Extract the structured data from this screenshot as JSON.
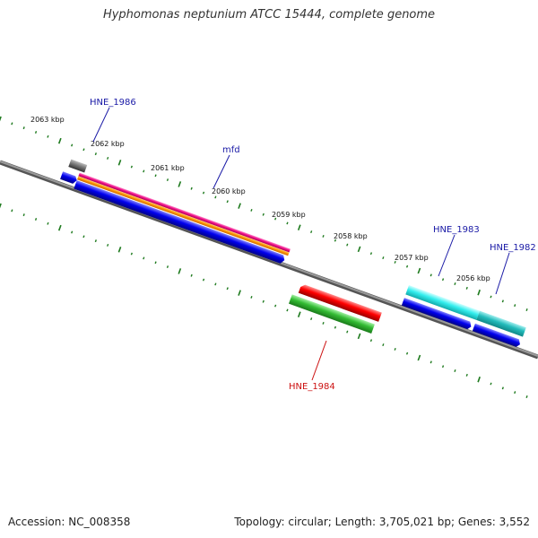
{
  "title": "Hyphomonas neptunium ATCC 15444, complete genome",
  "footer": {
    "accession": "Accession: NC_008358",
    "summary": "Topology: circular; Length: 3,705,021 bp; Genes: 3,552"
  },
  "colors": {
    "backbone": "#808080",
    "ticks": "#1e7a1e",
    "label_blue": "#1a1aa6",
    "label_red": "#cc1111"
  },
  "ruler": {
    "labels": [
      "2063 kbp",
      "2062 kbp",
      "2061 kbp",
      "2060 kbp",
      "2059 kbp",
      "2058 kbp",
      "2057 kbp",
      "2056 kbp"
    ]
  },
  "gene_labels": [
    {
      "id": "hne1986",
      "text": "HNE_1986",
      "color": "#1a1aa6"
    },
    {
      "id": "mfd",
      "text": "mfd",
      "color": "#1a1aa6"
    },
    {
      "id": "hne1983",
      "text": "HNE_1983",
      "color": "#1a1aa6"
    },
    {
      "id": "hne1982",
      "text": "HNE_1982",
      "color": "#1a1aa6"
    },
    {
      "id": "hne1984",
      "text": "HNE_1984",
      "color": "#cc1111"
    }
  ]
}
